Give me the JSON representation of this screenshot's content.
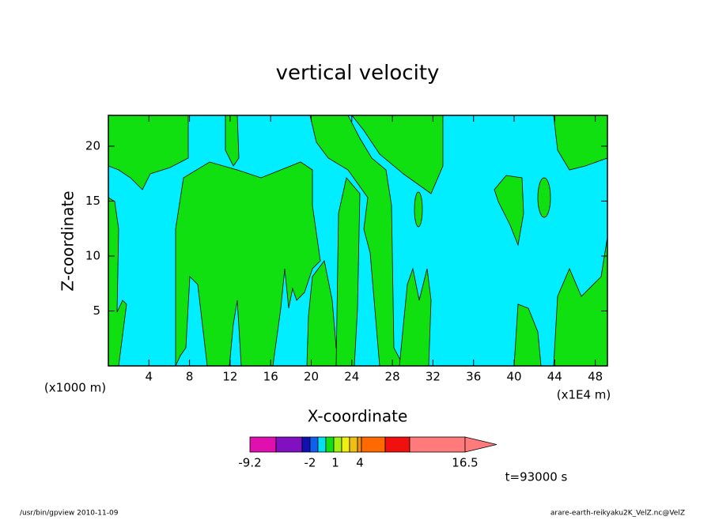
{
  "chart_data": {
    "type": "contour",
    "title": "vertical velocity",
    "x_label": "X-coordinate",
    "y_label": "Z-coordinate",
    "x_unit_note": "(x1000 m)",
    "x_scale_note": "(x1E4 m)",
    "xlim": [
      0,
      49.2
    ],
    "xticks": [
      4,
      8,
      12,
      16,
      20,
      24,
      28,
      32,
      36,
      40,
      44,
      48
    ],
    "ylim": [
      0,
      22.8
    ],
    "yticks": [
      5,
      10,
      15,
      20
    ],
    "colorbar": {
      "colors": [
        "#e010b0",
        "#8010c0",
        "#1010b0",
        "#1060f0",
        "#00e0f0",
        "#10e010",
        "#a0f010",
        "#f0f010",
        "#f0c010",
        "#f09010",
        "#ff6a00",
        "#f01010",
        "#ff7b7b"
      ],
      "labels": [
        -9.2,
        -2,
        1,
        4,
        16.5
      ]
    },
    "time_label": "t=93000 s",
    "footer_left": "/usr/bin/gpview   2010-11-09",
    "footer_right": "arare-earth-reikyaku2K_VelZ.nc@VelZ"
  }
}
